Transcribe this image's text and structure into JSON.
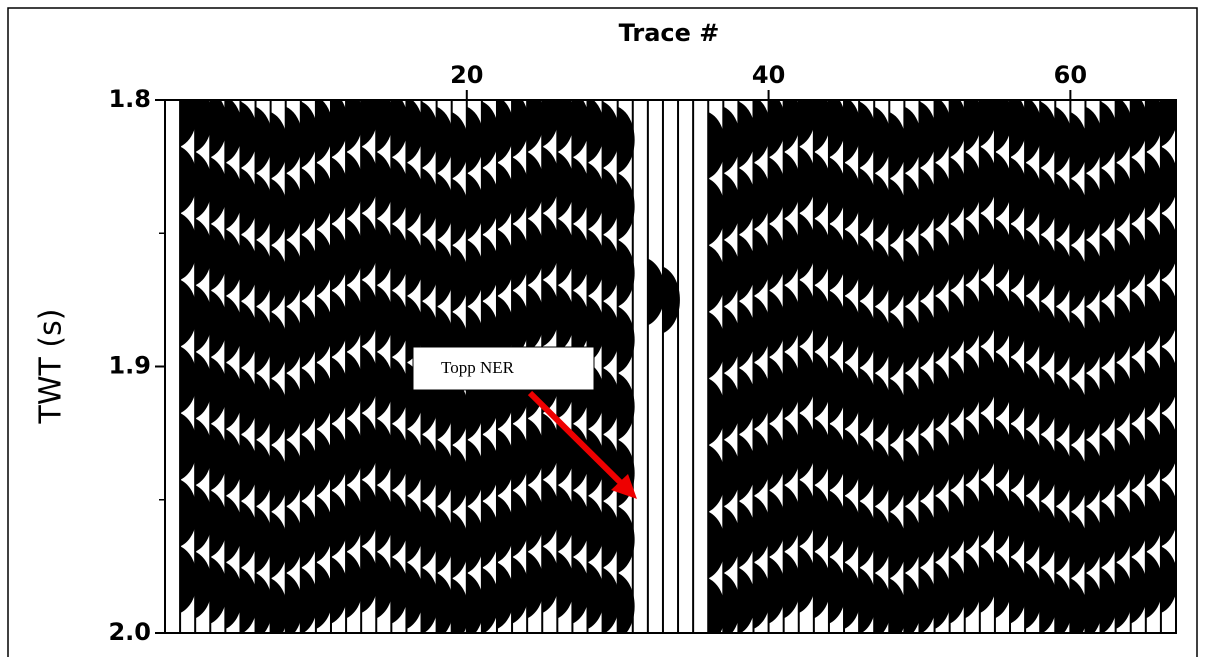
{
  "chart_data": {
    "type": "wiggle",
    "xlabel": "Trace #",
    "ylabel": "TWT (s)",
    "xlim": [
      0,
      67
    ],
    "xticks": [
      20,
      40,
      60
    ],
    "ylim": [
      1.8,
      2.0
    ],
    "y_inverted": true,
    "yticks": [
      1.8,
      1.9,
      {
        "value": 2,
        "label": "2.0"
      }
    ],
    "yminor": [
      1.85,
      1.95
    ],
    "color": "#000000",
    "annotation": "Topp NER",
    "x": [
      1,
      2,
      3,
      4,
      5,
      6,
      7,
      8,
      9,
      10,
      11,
      12,
      13,
      14,
      15,
      16,
      17,
      18,
      19,
      20,
      21,
      22,
      23,
      24,
      25,
      26,
      27,
      28,
      29,
      30,
      31,
      32,
      33,
      34,
      35,
      36,
      37,
      38,
      39,
      40,
      41,
      42,
      43,
      44,
      45,
      46,
      47,
      48,
      49,
      50,
      51,
      52,
      53,
      54,
      55,
      56,
      57,
      58,
      59,
      60,
      61,
      62,
      63,
      64,
      65,
      66
    ],
    "peaks": [
      [
        1.805,
        1.83,
        1.855,
        1.88,
        1.905,
        1.93,
        1.955,
        1.98
      ],
      [
        1.807,
        1.832,
        1.857,
        1.882,
        1.907,
        1.932,
        1.957,
        1.982
      ],
      [
        1.809,
        1.834,
        1.859,
        1.884,
        1.909,
        1.934,
        1.959,
        1.984
      ],
      [
        1.811,
        1.836,
        1.861,
        1.886,
        1.911,
        1.936,
        1.961,
        1.986
      ],
      [
        1.813,
        1.838,
        1.863,
        1.888,
        1.913,
        1.938,
        1.963,
        1.988
      ],
      [
        1.815,
        1.84,
        1.865,
        1.89,
        1.915,
        1.94,
        1.965,
        1.99
      ],
      [
        1.817,
        1.842,
        1.867,
        1.892,
        1.917,
        1.942,
        1.967,
        1.992
      ],
      [
        1.815,
        1.84,
        1.865,
        1.89,
        1.915,
        1.94,
        1.965,
        1.99
      ],
      [
        1.813,
        1.838,
        1.863,
        1.888,
        1.913,
        1.938,
        1.963,
        1.988
      ],
      [
        1.811,
        1.836,
        1.861,
        1.886,
        1.911,
        1.936,
        1.961,
        1.986
      ],
      [
        1.809,
        1.834,
        1.859,
        1.884,
        1.909,
        1.934,
        1.959,
        1.984
      ],
      [
        1.807,
        1.832,
        1.857,
        1.882,
        1.907,
        1.932,
        1.957,
        1.982
      ],
      [
        1.805,
        1.83,
        1.855,
        1.88,
        1.905,
        1.93,
        1.955,
        1.98
      ],
      [
        1.807,
        1.832,
        1.857,
        1.882,
        1.907,
        1.932,
        1.957,
        1.982
      ],
      [
        1.809,
        1.834,
        1.859,
        1.884,
        1.909,
        1.934,
        1.959,
        1.984
      ],
      [
        1.811,
        1.836,
        1.861,
        1.886,
        1.911,
        1.936,
        1.961,
        1.986
      ],
      [
        1.813,
        1.838,
        1.863,
        1.888,
        1.913,
        1.938,
        1.963,
        1.988
      ],
      [
        1.815,
        1.84,
        1.865,
        1.89,
        1.915,
        1.94,
        1.965,
        1.99
      ],
      [
        1.817,
        1.842,
        1.867,
        1.892,
        1.917,
        1.942,
        1.967,
        1.992
      ],
      [
        1.815,
        1.84,
        1.865,
        1.89,
        1.915,
        1.94,
        1.965,
        1.99
      ],
      [
        1.813,
        1.838,
        1.863,
        1.888,
        1.913,
        1.938,
        1.963,
        1.988
      ],
      [
        1.811,
        1.836,
        1.861,
        1.886,
        1.911,
        1.936,
        1.961,
        1.986
      ],
      [
        1.809,
        1.834,
        1.859,
        1.884,
        1.909,
        1.934,
        1.959,
        1.984
      ],
      [
        1.807,
        1.832,
        1.857,
        1.882,
        1.907,
        1.932,
        1.957,
        1.982
      ],
      [
        1.805,
        1.83,
        1.855,
        1.88,
        1.905,
        1.93,
        1.955,
        1.98
      ],
      [
        1.807,
        1.832,
        1.857,
        1.882,
        1.907,
        1.932,
        1.957,
        1.982
      ],
      [
        1.809,
        1.834,
        1.859,
        1.884,
        1.909,
        1.934,
        1.959,
        1.984
      ],
      [
        1.811,
        1.836,
        1.861,
        1.886,
        1.911,
        1.936,
        1.961,
        1.986
      ],
      [
        1.813,
        1.838,
        1.863,
        1.888,
        1.913,
        1.938,
        1.963,
        1.988
      ],
      [
        1.815,
        1.84,
        1.865,
        1.89,
        1.915,
        1.94,
        1.965,
        1.99
      ],
      [],
      [
        1.872
      ],
      [
        1.875
      ],
      [],
      [],
      [
        1.817,
        1.842,
        1.867,
        1.892,
        1.917,
        1.942,
        1.967,
        1.992
      ],
      [
        1.815,
        1.84,
        1.865,
        1.89,
        1.915,
        1.94,
        1.965,
        1.99
      ],
      [
        1.813,
        1.838,
        1.863,
        1.888,
        1.913,
        1.938,
        1.963,
        1.988
      ],
      [
        1.811,
        1.836,
        1.861,
        1.886,
        1.911,
        1.936,
        1.961,
        1.986
      ],
      [
        1.809,
        1.834,
        1.859,
        1.884,
        1.909,
        1.934,
        1.959,
        1.984
      ],
      [
        1.807,
        1.832,
        1.857,
        1.882,
        1.907,
        1.932,
        1.957,
        1.982
      ],
      [
        1.805,
        1.83,
        1.855,
        1.88,
        1.905,
        1.93,
        1.955,
        1.98
      ],
      [
        1.807,
        1.832,
        1.857,
        1.882,
        1.907,
        1.932,
        1.957,
        1.982
      ],
      [
        1.809,
        1.834,
        1.859,
        1.884,
        1.909,
        1.934,
        1.959,
        1.984
      ],
      [
        1.811,
        1.836,
        1.861,
        1.886,
        1.911,
        1.936,
        1.961,
        1.986
      ],
      [
        1.813,
        1.838,
        1.863,
        1.888,
        1.913,
        1.938,
        1.963,
        1.988
      ],
      [
        1.815,
        1.84,
        1.865,
        1.89,
        1.915,
        1.94,
        1.965,
        1.99
      ],
      [
        1.817,
        1.842,
        1.867,
        1.892,
        1.917,
        1.942,
        1.967,
        1.992
      ],
      [
        1.815,
        1.84,
        1.865,
        1.89,
        1.915,
        1.94,
        1.965,
        1.99
      ],
      [
        1.813,
        1.838,
        1.863,
        1.888,
        1.913,
        1.938,
        1.963,
        1.988
      ],
      [
        1.811,
        1.836,
        1.861,
        1.886,
        1.911,
        1.936,
        1.961,
        1.986
      ],
      [
        1.809,
        1.834,
        1.859,
        1.884,
        1.909,
        1.934,
        1.959,
        1.984
      ],
      [
        1.807,
        1.832,
        1.857,
        1.882,
        1.907,
        1.932,
        1.957,
        1.982
      ],
      [
        1.805,
        1.83,
        1.855,
        1.88,
        1.905,
        1.93,
        1.955,
        1.98
      ],
      [
        1.807,
        1.832,
        1.857,
        1.882,
        1.907,
        1.932,
        1.957,
        1.982
      ],
      [
        1.809,
        1.834,
        1.859,
        1.884,
        1.909,
        1.934,
        1.959,
        1.984
      ],
      [
        1.811,
        1.836,
        1.861,
        1.886,
        1.911,
        1.936,
        1.961,
        1.986
      ],
      [
        1.813,
        1.838,
        1.863,
        1.888,
        1.913,
        1.938,
        1.963,
        1.988
      ],
      [
        1.815,
        1.84,
        1.865,
        1.89,
        1.915,
        1.94,
        1.965,
        1.99
      ],
      [
        1.817,
        1.842,
        1.867,
        1.892,
        1.917,
        1.942,
        1.967,
        1.992
      ],
      [
        1.815,
        1.84,
        1.865,
        1.89,
        1.915,
        1.94,
        1.965,
        1.99
      ],
      [
        1.813,
        1.838,
        1.863,
        1.888,
        1.913,
        1.938,
        1.963,
        1.988
      ],
      [
        1.811,
        1.836,
        1.861,
        1.886,
        1.911,
        1.936,
        1.961,
        1.986
      ],
      [
        1.809,
        1.834,
        1.859,
        1.884,
        1.909,
        1.934,
        1.959,
        1.984
      ],
      [
        1.807,
        1.832,
        1.857,
        1.882,
        1.907,
        1.932,
        1.957,
        1.982
      ],
      [
        1.805,
        1.83,
        1.855,
        1.88,
        1.905,
        1.93,
        1.955,
        1.98
      ]
    ]
  }
}
